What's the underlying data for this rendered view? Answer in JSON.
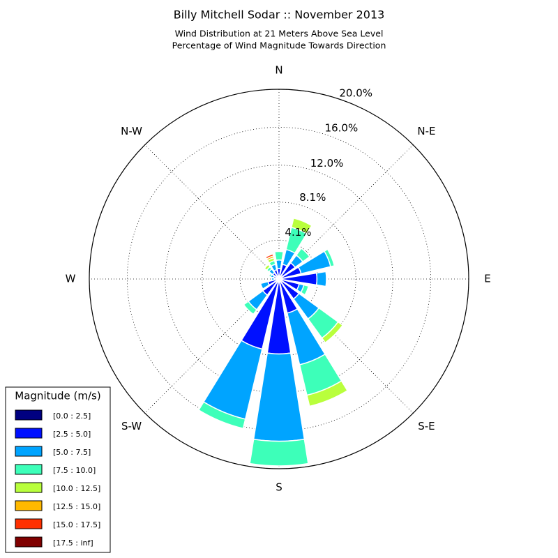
{
  "chart_data": {
    "type": "windrose",
    "title": "Billy Mitchell Sodar :: November 2013",
    "subtitle": [
      "Wind Distribution at 21 Meters Above Sea Level",
      "Percentage of Wind Magnitude Towards Direction"
    ],
    "categories": [
      "N",
      null,
      "N-E",
      null,
      "E",
      null,
      "S-E",
      null,
      "S",
      null,
      "S-W",
      null,
      "W",
      null,
      "N-W",
      null
    ],
    "rlim": [
      0,
      20
    ],
    "rticks": [
      {
        "value": 4.1,
        "label": "4.1%"
      },
      {
        "value": 8.1,
        "label": "8.1%"
      },
      {
        "value": 12.0,
        "label": "12.0%"
      },
      {
        "value": 16.0,
        "label": "16.0%"
      },
      {
        "value": 20.0,
        "label": "20.0%"
      }
    ],
    "legend_title": "Magnitude (m/s)",
    "legend": "lower left",
    "series": [
      {
        "name": "[0.0 : 2.5]",
        "color": "#000080",
        "values": [
          0.2,
          0.2,
          0.2,
          0.2,
          0.2,
          0.2,
          0.2,
          0.3,
          0.3,
          0.3,
          0.2,
          0.1,
          0.1,
          0.1,
          0.2,
          0.2
        ]
      },
      {
        "name": "[2.5 : 5.0]",
        "color": "#0010ff",
        "values": [
          0.9,
          1.4,
          1.9,
          2.2,
          3.8,
          2.0,
          2.4,
          3.4,
          7.6,
          7.3,
          1.9,
          1.1,
          0.4,
          0.5,
          0.6,
          0.8
        ]
      },
      {
        "name": "[5.0 : 7.5]",
        "color": "#00a4ff",
        "values": [
          0.9,
          1.6,
          1.0,
          3.2,
          1.0,
          0.5,
          2.6,
          5.6,
          9.2,
          7.6,
          1.9,
          0.8,
          0.3,
          0.3,
          0.5,
          0.6
        ]
      },
      {
        "name": "[7.5 : 10.0]",
        "color": "#3dffb9",
        "values": [
          0.9,
          2.4,
          0.9,
          0.4,
          0,
          0.5,
          2.5,
          3.3,
          2.6,
          1.0,
          0.6,
          0,
          0,
          0.2,
          0.3,
          0.4
        ]
      },
      {
        "name": "[10.0 : 12.5]",
        "color": "#b9ff3c",
        "values": [
          0,
          1.0,
          0,
          0,
          0,
          0,
          0.6,
          1.2,
          0,
          0,
          0,
          0,
          0,
          0,
          0.3,
          0.3
        ]
      },
      {
        "name": "[12.5 : 15.0]",
        "color": "#ffb900",
        "values": [
          0,
          0,
          0,
          0,
          0,
          0,
          0,
          0,
          0,
          0,
          0,
          0,
          0,
          0,
          0.1,
          0.2
        ]
      },
      {
        "name": "[15.0 : 17.5]",
        "color": "#ff3000",
        "values": [
          0,
          0,
          0,
          0,
          0,
          0,
          0,
          0,
          0,
          0,
          0,
          0,
          0,
          0,
          0,
          0.2
        ]
      },
      {
        "name": "[17.5 : inf]",
        "color": "#800000",
        "values": [
          0,
          0,
          0,
          0,
          0,
          0,
          0,
          0,
          0,
          0,
          0,
          0,
          0,
          0,
          0,
          0
        ]
      }
    ]
  }
}
